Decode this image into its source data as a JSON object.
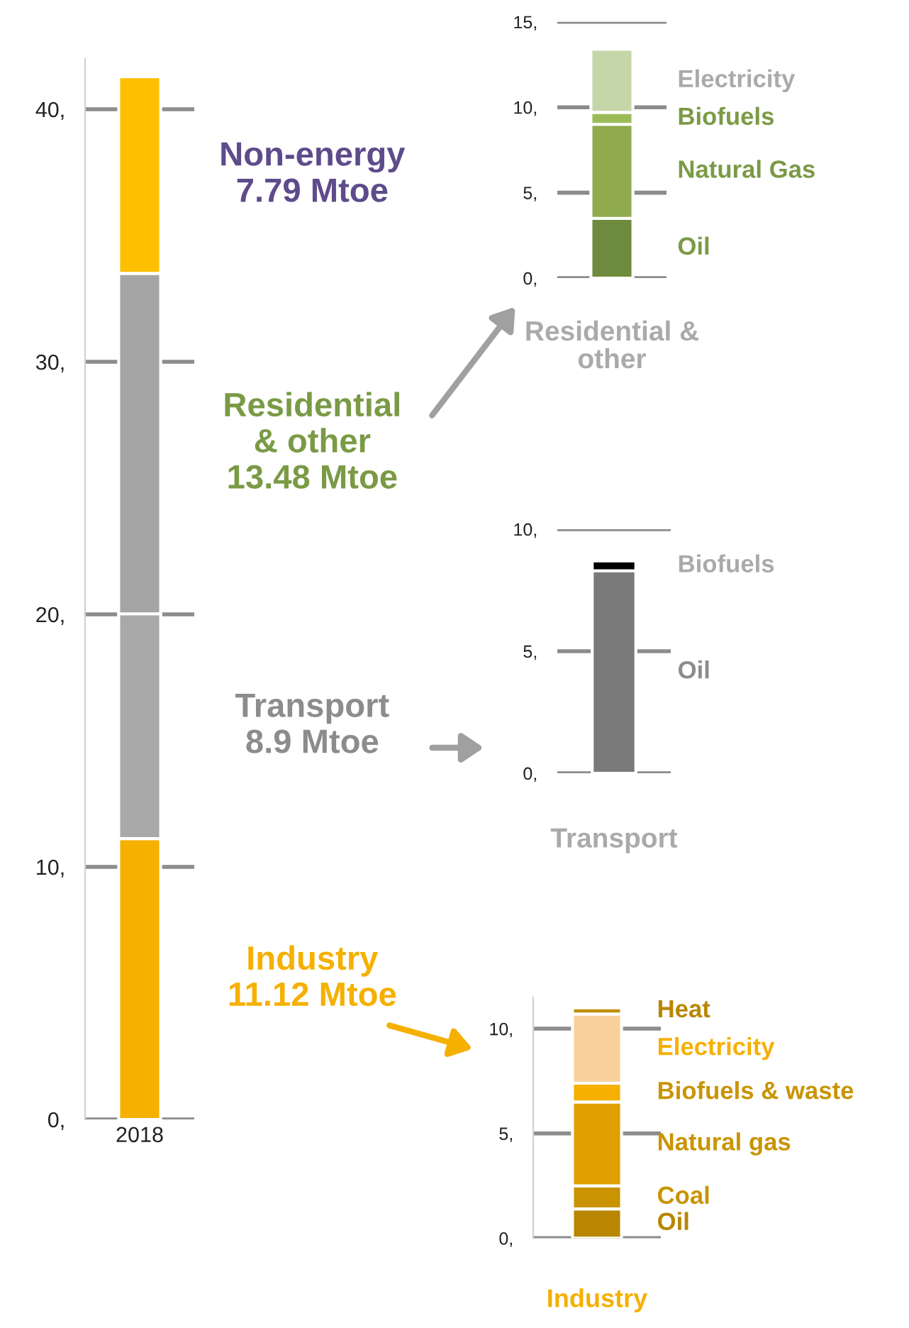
{
  "chart_data": [
    {
      "type": "bar",
      "stacked": true,
      "categories": [
        "2018"
      ],
      "ylim": [
        0,
        42
      ],
      "yticks": [
        {
          "value": 0,
          "label": "0,"
        },
        {
          "value": 10,
          "label": "10,"
        },
        {
          "value": 20,
          "label": "20,"
        },
        {
          "value": 30,
          "label": "30,"
        },
        {
          "value": 40,
          "label": "40,"
        }
      ],
      "grid": "y",
      "series": [
        {
          "name": "Industry\n11.12 Mtoe",
          "color": "#f5b000",
          "values": [
            11.12
          ]
        },
        {
          "name": "Transport\n8.9 Mtoe",
          "color": "#a9a9a9",
          "values": [
            8.9
          ]
        },
        {
          "name": "Residential\n& other\n13.48 Mtoe",
          "color": "#a5a5a5",
          "values": [
            13.48
          ]
        },
        {
          "name": "Non-energy\n7.79 Mtoe",
          "color": "#fdbf00",
          "values": [
            7.79
          ]
        }
      ]
    },
    {
      "type": "bar",
      "stacked": true,
      "categories": [
        null
      ],
      "xlabel": "Residential &\nother",
      "ylim": [
        0,
        15
      ],
      "yticks": [
        {
          "value": 0,
          "label": "0,"
        },
        {
          "value": 5,
          "label": "5,"
        },
        {
          "value": 10,
          "label": "10,"
        },
        {
          "value": 15,
          "label": "15,"
        }
      ],
      "grid": "y",
      "series": [
        {
          "name": "Oil",
          "color": "#6e8a3c",
          "values": [
            3.5
          ]
        },
        {
          "name": "Natural Gas",
          "color": "#8fab4e",
          "values": [
            5.5
          ]
        },
        {
          "name": "Biofuels",
          "color": "#9bbb59",
          "values": [
            0.7
          ]
        },
        {
          "name": "Electricity",
          "color": "#c5d6a8",
          "values": [
            3.7
          ]
        }
      ]
    },
    {
      "type": "bar",
      "stacked": true,
      "categories": [
        null
      ],
      "xlabel": "Transport",
      "ylim": [
        0,
        10
      ],
      "yticks": [
        {
          "value": 0,
          "label": "0,"
        },
        {
          "value": 5,
          "label": "5,"
        },
        {
          "value": 10,
          "label": "10,"
        }
      ],
      "grid": "y",
      "series": [
        {
          "name": "Oil",
          "color": "#7a7a7a",
          "values": [
            8.3
          ]
        },
        {
          "name": "Biofuels",
          "color": "#000000",
          "values": [
            0.4
          ]
        }
      ]
    },
    {
      "type": "bar",
      "stacked": true,
      "categories": [
        null
      ],
      "xlabel": "Industry",
      "ylim": [
        0,
        11.5
      ],
      "yticks": [
        {
          "value": 0,
          "label": "0,"
        },
        {
          "value": 5,
          "label": "5,"
        },
        {
          "value": 10,
          "label": "10,"
        }
      ],
      "grid": "y",
      "series": [
        {
          "name": "Oil",
          "color": "#b88600",
          "values": [
            1.4
          ]
        },
        {
          "name": "Coal",
          "color": "#c99400",
          "values": [
            1.1
          ]
        },
        {
          "name": "Natural gas",
          "color": "#e0a000",
          "values": [
            4.0
          ]
        },
        {
          "name": "Biofuels & waste",
          "color": "#f5b000",
          "values": [
            0.9
          ]
        },
        {
          "name": "Electricity",
          "color": "#f9cf9b",
          "values": [
            3.3
          ]
        },
        {
          "name": "Heat",
          "color": "#c0900a",
          "values": [
            0.3
          ]
        }
      ]
    }
  ]
}
